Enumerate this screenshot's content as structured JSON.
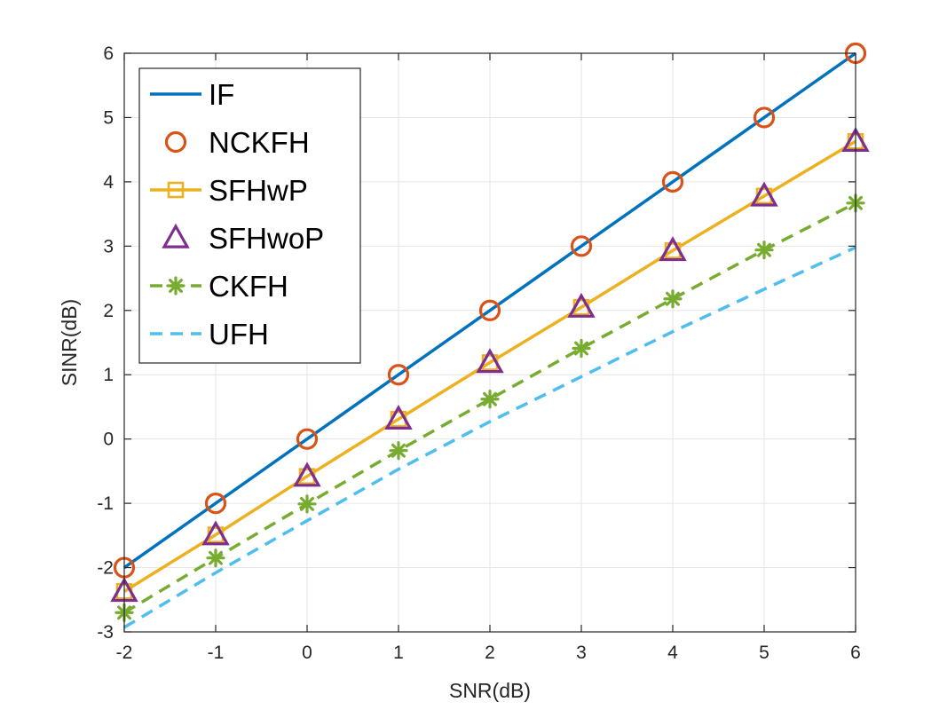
{
  "chart_data": {
    "type": "line",
    "xlabel": "SNR(dB)",
    "ylabel": "SINR(dB)",
    "xlim": [
      -2,
      6
    ],
    "ylim": [
      -3,
      6
    ],
    "xticks": [
      "-2",
      "-1",
      "0",
      "1",
      "2",
      "3",
      "4",
      "5",
      "6"
    ],
    "yticks": [
      "-3",
      "-2",
      "-1",
      "0",
      "1",
      "2",
      "3",
      "4",
      "5",
      "6"
    ],
    "grid": true,
    "legend_position": "top-left",
    "x": [
      -2,
      -1,
      0,
      1,
      2,
      3,
      4,
      5,
      6
    ],
    "series": [
      {
        "name": "IF",
        "color": "#0072BD",
        "line": "solid",
        "marker": "none",
        "values": [
          -2,
          -1,
          0,
          1,
          2,
          3,
          4,
          5,
          6
        ]
      },
      {
        "name": "NCKFH",
        "color": "#D95319",
        "line": "none",
        "marker": "circle",
        "values": [
          -2,
          -1,
          0,
          1,
          2,
          3,
          4,
          5,
          6
        ]
      },
      {
        "name": "SFHwP",
        "color": "#EDB120",
        "line": "solid",
        "marker": "square",
        "values": [
          -2.37,
          -1.49,
          -0.58,
          0.31,
          1.19,
          2.05,
          2.93,
          3.78,
          4.63
        ]
      },
      {
        "name": "SFHwoP",
        "color": "#7E2F8E",
        "line": "none",
        "marker": "triangle",
        "values": [
          -2.37,
          -1.49,
          -0.58,
          0.31,
          1.19,
          2.05,
          2.93,
          3.78,
          4.63
        ]
      },
      {
        "name": "CKFH",
        "color": "#77AC30",
        "line": "dashed",
        "marker": "asterisk",
        "values": [
          -2.7,
          -1.85,
          -1.01,
          -0.18,
          0.62,
          1.41,
          2.18,
          2.94,
          3.67
        ]
      },
      {
        "name": "UFH",
        "color": "#4DBEEE",
        "line": "dashed",
        "marker": "none",
        "values": [
          -2.93,
          -2.08,
          -1.27,
          -0.47,
          0.27,
          0.97,
          1.67,
          2.33,
          2.98
        ]
      }
    ]
  }
}
